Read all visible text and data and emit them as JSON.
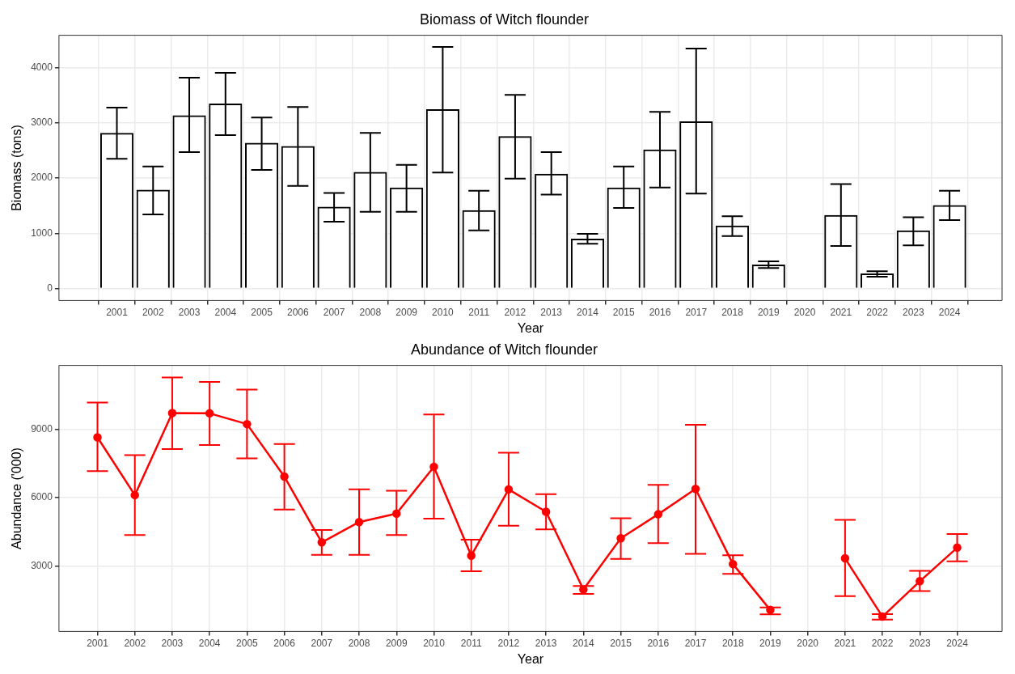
{
  "chart_data": [
    {
      "type": "bar",
      "title": "Biomass of Witch flounder",
      "xlabel": "Year",
      "ylabel": "Biomass (tons)",
      "x": [
        2001,
        2002,
        2003,
        2004,
        2005,
        2006,
        2007,
        2008,
        2009,
        2010,
        2011,
        2012,
        2013,
        2014,
        2015,
        2016,
        2017,
        2018,
        2019,
        2020,
        2021,
        2022,
        2023,
        2024
      ],
      "series": [
        {
          "color": "#000000",
          "values": [
            2820,
            1790,
            3140,
            3350,
            2640,
            2580,
            1480,
            2110,
            1830,
            3250,
            1420,
            2760,
            2080,
            900,
            1830,
            2520,
            3030,
            1140,
            430,
            null,
            1330,
            270,
            1050,
            1510
          ],
          "errors": [
            [
              2350,
              3280
            ],
            [
              1340,
              2210
            ],
            [
              2470,
              3820
            ],
            [
              2780,
              3910
            ],
            [
              2150,
              3100
            ],
            [
              1860,
              3290
            ],
            [
              1210,
              1730
            ],
            [
              1390,
              2820
            ],
            [
              1390,
              2240
            ],
            [
              2100,
              4380
            ],
            [
              1050,
              1770
            ],
            [
              1990,
              3510
            ],
            [
              1700,
              2470
            ],
            [
              810,
              990
            ],
            [
              1460,
              2210
            ],
            [
              1830,
              3200
            ],
            [
              1720,
              4350
            ],
            [
              950,
              1310
            ],
            [
              370,
              490
            ],
            null,
            [
              770,
              1890
            ],
            [
              210,
              310
            ],
            [
              780,
              1290
            ],
            [
              1240,
              1770
            ]
          ]
        }
      ],
      "xlim": [
        1999.4,
        2025.45
      ],
      "xticks": [
        2001,
        2002,
        2003,
        2004,
        2005,
        2006,
        2007,
        2008,
        2009,
        2010,
        2011,
        2012,
        2013,
        2014,
        2015,
        2016,
        2017,
        2018,
        2019,
        2020,
        2021,
        2022,
        2023,
        2024
      ],
      "ylim": [
        -220,
        4590
      ],
      "yticks": [
        0,
        1000,
        2000,
        3000,
        4000
      ],
      "grid": true,
      "legend": false
    },
    {
      "type": "line",
      "title": "Abundance of Witch flounder",
      "xlabel": "Year",
      "ylabel": "Abundance ('000)",
      "x": [
        2001,
        2002,
        2003,
        2004,
        2005,
        2006,
        2007,
        2008,
        2009,
        2010,
        2011,
        2012,
        2013,
        2014,
        2015,
        2016,
        2017,
        2018,
        2019,
        2020,
        2021,
        2022,
        2023,
        2024
      ],
      "series": [
        {
          "color": "#ff0000",
          "values": [
            8640,
            6110,
            9700,
            9690,
            9220,
            6920,
            4040,
            4930,
            5300,
            7350,
            3460,
            6360,
            5380,
            1980,
            4220,
            5270,
            6380,
            3090,
            1080,
            null,
            3340,
            790,
            2340,
            3810
          ],
          "errors": [
            [
              7160,
              10160
            ],
            [
              4360,
              7860
            ],
            [
              8130,
              11260
            ],
            [
              8300,
              11070
            ],
            [
              7720,
              10730
            ],
            [
              5480,
              8350
            ],
            [
              3490,
              4580
            ],
            [
              3490,
              6360
            ],
            [
              4360,
              6300
            ],
            [
              5080,
              9640
            ],
            [
              2780,
              4160
            ],
            [
              4770,
              7970
            ],
            [
              4610,
              6150
            ],
            [
              1780,
              2130
            ],
            [
              3320,
              5100
            ],
            [
              4010,
              6560
            ],
            [
              3540,
              9190
            ],
            [
              2660,
              3480
            ],
            [
              890,
              1190
            ],
            null,
            [
              1690,
              5030
            ],
            [
              660,
              900
            ],
            [
              1910,
              2790
            ],
            [
              3210,
              4410
            ]
          ]
        }
      ],
      "xlim": [
        1999.97,
        2025.2
      ],
      "xticks": [
        2001,
        2002,
        2003,
        2004,
        2005,
        2006,
        2007,
        2008,
        2009,
        2010,
        2011,
        2012,
        2013,
        2014,
        2015,
        2016,
        2017,
        2018,
        2019,
        2020,
        2021,
        2022,
        2023,
        2024
      ],
      "ylim": [
        140,
        11790
      ],
      "yticks": [
        3000,
        6000,
        9000
      ],
      "grid": true,
      "legend": false,
      "marker": "circle",
      "line_style": "solid"
    }
  ]
}
